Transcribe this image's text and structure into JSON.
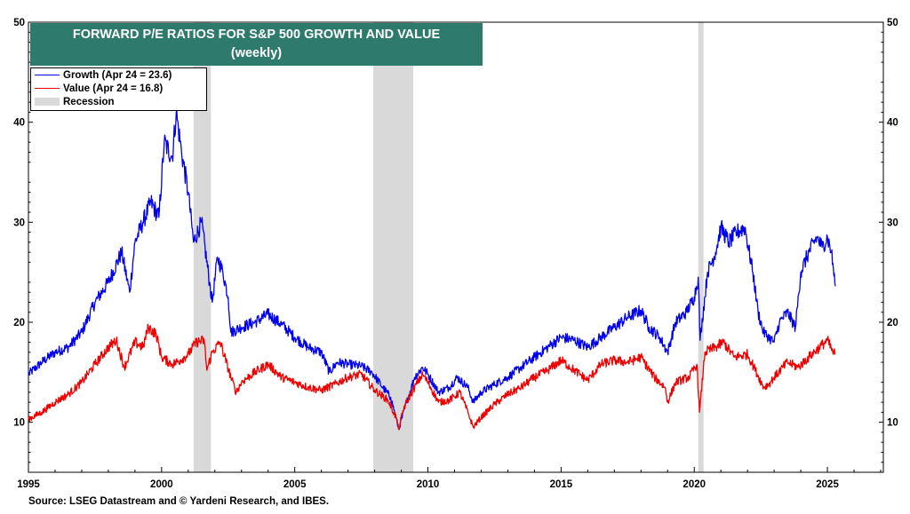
{
  "chart_data": {
    "type": "line",
    "title": "FORWARD P/E RATIOS FOR S&P 500 GROWTH AND VALUE",
    "subtitle": "(weekly)",
    "xlim": [
      1995,
      2027.1
    ],
    "ylim": [
      5,
      50
    ],
    "x_ticks": [
      1995,
      2000,
      2005,
      2010,
      2015,
      2020,
      2025
    ],
    "y_ticks": [
      10,
      20,
      30,
      40,
      50
    ],
    "grid": false,
    "legend_position": "top-left",
    "series": [
      {
        "name": "Growth (Apr 24 = 23.6)",
        "color": "#0000ee",
        "points": [
          [
            1995.0,
            14.8
          ],
          [
            1995.5,
            16.0
          ],
          [
            1996.0,
            17.0
          ],
          [
            1996.5,
            17.5
          ],
          [
            1997.0,
            19.0
          ],
          [
            1997.5,
            22.0
          ],
          [
            1998.0,
            24.0
          ],
          [
            1998.5,
            27.0
          ],
          [
            1998.8,
            23.0
          ],
          [
            1999.0,
            28.0
          ],
          [
            1999.3,
            30.0
          ],
          [
            1999.6,
            32.0
          ],
          [
            1999.9,
            30.5
          ],
          [
            2000.1,
            38.0
          ],
          [
            2000.4,
            36.5
          ],
          [
            2000.55,
            41.0
          ],
          [
            2000.75,
            37.0
          ],
          [
            2001.0,
            33.0
          ],
          [
            2001.2,
            28.0
          ],
          [
            2001.5,
            30.0
          ],
          [
            2001.8,
            24.0
          ],
          [
            2001.9,
            22.0
          ],
          [
            2002.1,
            26.5
          ],
          [
            2002.3,
            25.0
          ],
          [
            2002.5,
            22.5
          ],
          [
            2002.6,
            19.0
          ],
          [
            2003.0,
            19.5
          ],
          [
            2003.5,
            20.0
          ],
          [
            2004.0,
            20.8
          ],
          [
            2004.5,
            19.8
          ],
          [
            2005.0,
            18.5
          ],
          [
            2005.5,
            17.5
          ],
          [
            2006.0,
            17.0
          ],
          [
            2006.3,
            15.0
          ],
          [
            2006.6,
            16.0
          ],
          [
            2007.0,
            15.8
          ],
          [
            2007.5,
            15.6
          ],
          [
            2007.9,
            15.0
          ],
          [
            2008.3,
            13.5
          ],
          [
            2008.6,
            12.5
          ],
          [
            2008.8,
            10.5
          ],
          [
            2008.9,
            9.3
          ],
          [
            2009.2,
            12.0
          ],
          [
            2009.5,
            14.5
          ],
          [
            2009.8,
            15.5
          ],
          [
            2010.0,
            14.8
          ],
          [
            2010.4,
            13.0
          ],
          [
            2010.8,
            13.5
          ],
          [
            2011.1,
            14.5
          ],
          [
            2011.5,
            13.5
          ],
          [
            2011.7,
            12.0
          ],
          [
            2012.0,
            13.0
          ],
          [
            2012.5,
            13.8
          ],
          [
            2013.0,
            14.5
          ],
          [
            2013.5,
            15.5
          ],
          [
            2014.0,
            16.5
          ],
          [
            2014.5,
            17.5
          ],
          [
            2015.0,
            18.5
          ],
          [
            2015.5,
            18.2
          ],
          [
            2016.0,
            17.5
          ],
          [
            2016.5,
            18.5
          ],
          [
            2017.0,
            19.5
          ],
          [
            2017.5,
            20.5
          ],
          [
            2018.0,
            21.2
          ],
          [
            2018.3,
            19.5
          ],
          [
            2018.7,
            18.5
          ],
          [
            2019.0,
            17.0
          ],
          [
            2019.3,
            20.0
          ],
          [
            2019.7,
            21.0
          ],
          [
            2020.0,
            22.5
          ],
          [
            2020.15,
            24.5
          ],
          [
            2020.22,
            18.2
          ],
          [
            2020.5,
            25.0
          ],
          [
            2020.8,
            27.0
          ],
          [
            2021.0,
            29.5
          ],
          [
            2021.3,
            28.0
          ],
          [
            2021.6,
            29.0
          ],
          [
            2021.9,
            29.5
          ],
          [
            2022.2,
            25.0
          ],
          [
            2022.4,
            21.0
          ],
          [
            2022.6,
            19.0
          ],
          [
            2022.8,
            18.5
          ],
          [
            2023.0,
            18.0
          ],
          [
            2023.2,
            20.0
          ],
          [
            2023.5,
            21.0
          ],
          [
            2023.8,
            19.5
          ],
          [
            2024.0,
            25.0
          ],
          [
            2024.3,
            27.0
          ],
          [
            2024.6,
            28.5
          ],
          [
            2024.8,
            27.5
          ],
          [
            2025.0,
            28.5
          ],
          [
            2025.15,
            27.0
          ],
          [
            2025.3,
            23.6
          ]
        ]
      },
      {
        "name": "Value (Apr 24 = 16.8)",
        "color": "#ee0000",
        "points": [
          [
            1995.0,
            10.3
          ],
          [
            1995.5,
            11.0
          ],
          [
            1996.0,
            12.0
          ],
          [
            1996.5,
            12.8
          ],
          [
            1997.0,
            14.0
          ],
          [
            1997.5,
            15.8
          ],
          [
            1998.0,
            17.5
          ],
          [
            1998.3,
            18.2
          ],
          [
            1998.6,
            15.5
          ],
          [
            1999.0,
            18.0
          ],
          [
            1999.3,
            17.5
          ],
          [
            1999.5,
            19.5
          ],
          [
            1999.8,
            18.8
          ],
          [
            2000.0,
            16.5
          ],
          [
            2000.4,
            15.8
          ],
          [
            2000.7,
            16.2
          ],
          [
            2001.0,
            16.8
          ],
          [
            2001.3,
            18.0
          ],
          [
            2001.6,
            18.2
          ],
          [
            2001.7,
            15.2
          ],
          [
            2001.9,
            17.0
          ],
          [
            2002.2,
            18.0
          ],
          [
            2002.6,
            14.5
          ],
          [
            2002.8,
            13.0
          ],
          [
            2003.0,
            14.0
          ],
          [
            2003.5,
            15.0
          ],
          [
            2004.0,
            15.8
          ],
          [
            2004.5,
            14.5
          ],
          [
            2005.0,
            14.0
          ],
          [
            2005.5,
            13.5
          ],
          [
            2006.0,
            13.2
          ],
          [
            2006.5,
            13.8
          ],
          [
            2007.0,
            14.5
          ],
          [
            2007.5,
            14.8
          ],
          [
            2008.0,
            13.2
          ],
          [
            2008.5,
            12.2
          ],
          [
            2008.8,
            10.5
          ],
          [
            2008.9,
            9.3
          ],
          [
            2009.1,
            11.5
          ],
          [
            2009.5,
            13.5
          ],
          [
            2009.8,
            14.8
          ],
          [
            2010.0,
            14.0
          ],
          [
            2010.4,
            12.0
          ],
          [
            2010.8,
            12.2
          ],
          [
            2011.2,
            13.0
          ],
          [
            2011.5,
            11.0
          ],
          [
            2011.7,
            9.5
          ],
          [
            2012.0,
            10.5
          ],
          [
            2012.5,
            11.8
          ],
          [
            2013.0,
            12.8
          ],
          [
            2013.5,
            13.5
          ],
          [
            2014.0,
            14.5
          ],
          [
            2014.5,
            15.2
          ],
          [
            2015.0,
            16.2
          ],
          [
            2015.5,
            15.2
          ],
          [
            2016.0,
            14.2
          ],
          [
            2016.5,
            15.8
          ],
          [
            2017.0,
            16.2
          ],
          [
            2017.5,
            16.0
          ],
          [
            2018.0,
            16.5
          ],
          [
            2018.5,
            14.5
          ],
          [
            2018.9,
            13.5
          ],
          [
            2019.0,
            12.0
          ],
          [
            2019.3,
            14.0
          ],
          [
            2019.8,
            14.5
          ],
          [
            2020.1,
            15.8
          ],
          [
            2020.2,
            11.0
          ],
          [
            2020.4,
            17.0
          ],
          [
            2020.8,
            17.5
          ],
          [
            2021.1,
            18.0
          ],
          [
            2021.5,
            16.5
          ],
          [
            2022.0,
            16.8
          ],
          [
            2022.3,
            15.2
          ],
          [
            2022.6,
            13.5
          ],
          [
            2022.8,
            13.8
          ],
          [
            2023.0,
            14.5
          ],
          [
            2023.5,
            16.0
          ],
          [
            2023.9,
            15.5
          ],
          [
            2024.3,
            16.5
          ],
          [
            2024.7,
            17.5
          ],
          [
            2025.0,
            18.2
          ],
          [
            2025.2,
            17.0
          ],
          [
            2025.3,
            16.8
          ]
        ]
      }
    ],
    "recessions": [
      {
        "start": 2001.2,
        "end": 2001.85
      },
      {
        "start": 2007.95,
        "end": 2009.45
      },
      {
        "start": 2020.15,
        "end": 2020.35
      }
    ],
    "legend": {
      "growth": "Growth (Apr 24 = 23.6)",
      "value": "Value (Apr 24 = 16.8)",
      "recession": "Recession"
    },
    "source": "Source: LSEG Datastream and © Yardeni Research, and IBES."
  },
  "colors": {
    "title_bg": "#2e7b6e",
    "growth": "#0000ee",
    "value": "#ee0000",
    "recession": "#d9d9d9"
  }
}
